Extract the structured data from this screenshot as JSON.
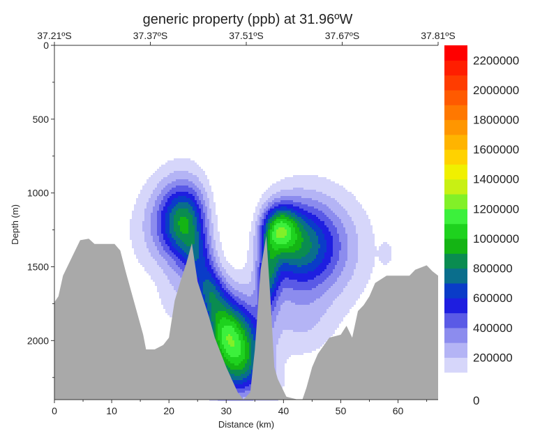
{
  "chart_data": {
    "type": "heatmap",
    "title": "generic property (ppb) at 31.96ºW",
    "xlabel": "Distance (km)",
    "ylabel": "Depth (m)",
    "xlim": [
      0,
      67
    ],
    "ylim": [
      2400,
      0
    ],
    "x_ticks": [
      "0",
      "10",
      "20",
      "30",
      "40",
      "50",
      "60"
    ],
    "y_ticks": [
      "0",
      "500",
      "1000",
      "1500",
      "2000"
    ],
    "top_axis_labels": [
      "37.21ºS",
      "37.37ºS",
      "37.51ºS",
      "37.67ºS",
      "37.81ºS"
    ],
    "colorbar": {
      "min": 0,
      "max": 2300000,
      "labels": [
        "0",
        "200000",
        "400000",
        "600000",
        "800000",
        "1000000",
        "1200000",
        "1400000",
        "1600000",
        "1800000",
        "2000000",
        "2200000"
      ],
      "levels": [
        {
          "from": 0,
          "to": 100000,
          "color": "#ffffff"
        },
        {
          "from": 100000,
          "to": 200000,
          "color": "#d6d6fa"
        },
        {
          "from": 200000,
          "to": 300000,
          "color": "#b4b4f5"
        },
        {
          "from": 300000,
          "to": 400000,
          "color": "#8c8cee"
        },
        {
          "from": 400000,
          "to": 500000,
          "color": "#5a5ae6"
        },
        {
          "from": 500000,
          "to": 600000,
          "color": "#1e1ee0"
        },
        {
          "from": 600000,
          "to": 700000,
          "color": "#0a3cc8"
        },
        {
          "from": 700000,
          "to": 800000,
          "color": "#0a6e8c"
        },
        {
          "from": 800000,
          "to": 900000,
          "color": "#0a8c50"
        },
        {
          "from": 900000,
          "to": 1000000,
          "color": "#14b414"
        },
        {
          "from": 1000000,
          "to": 1100000,
          "color": "#1ed21e"
        },
        {
          "from": 1100000,
          "to": 1200000,
          "color": "#3cf03c"
        },
        {
          "from": 1200000,
          "to": 1300000,
          "color": "#82f028"
        },
        {
          "from": 1300000,
          "to": 1400000,
          "color": "#c8f014"
        },
        {
          "from": 1400000,
          "to": 1500000,
          "color": "#f0f000"
        },
        {
          "from": 1500000,
          "to": 1600000,
          "color": "#ffd200"
        },
        {
          "from": 1600000,
          "to": 1700000,
          "color": "#ffb400"
        },
        {
          "from": 1700000,
          "to": 1800000,
          "color": "#ff9600"
        },
        {
          "from": 1800000,
          "to": 1900000,
          "color": "#ff7800"
        },
        {
          "from": 1900000,
          "to": 2000000,
          "color": "#ff5a00"
        },
        {
          "from": 2000000,
          "to": 2100000,
          "color": "#ff3c00"
        },
        {
          "from": 2100000,
          "to": 2200000,
          "color": "#ff1e00"
        },
        {
          "from": 2200000,
          "to": 2300000,
          "color": "#ff0000"
        }
      ]
    },
    "field": {
      "description_units": "x in km, y in m depth, amp in ppb",
      "blobs": [
        {
          "x": 23.2,
          "y": 1200,
          "sx": 3.2,
          "sy": 170,
          "amp": 700000
        },
        {
          "x": 23.0,
          "y": 1090,
          "sx": 4.5,
          "sy": 230,
          "amp": 200000
        },
        {
          "x": 25.5,
          "y": 1440,
          "sx": 2.2,
          "sy": 120,
          "amp": 450000
        },
        {
          "x": 27.3,
          "y": 1650,
          "sx": 2.0,
          "sy": 120,
          "amp": 700000
        },
        {
          "x": 29.5,
          "y": 1900,
          "sx": 2.4,
          "sy": 180,
          "amp": 900000
        },
        {
          "x": 32.5,
          "y": 2100,
          "sx": 3.0,
          "sy": 260,
          "amp": 1050000
        },
        {
          "x": 37.2,
          "y": 1550,
          "sx": 1.3,
          "sy": 180,
          "amp": 650000
        },
        {
          "x": 38.8,
          "y": 1240,
          "sx": 2.3,
          "sy": 110,
          "amp": 800000
        },
        {
          "x": 42.5,
          "y": 1350,
          "sx": 5.0,
          "sy": 200,
          "amp": 600000
        },
        {
          "x": 45.0,
          "y": 1400,
          "sx": 7.5,
          "sy": 320,
          "amp": 250000
        },
        {
          "x": 19.0,
          "y": 1290,
          "sx": 5.0,
          "sy": 230,
          "amp": 160000
        },
        {
          "x": 43.0,
          "y": 1900,
          "sx": 4.0,
          "sy": 170,
          "amp": 140000
        },
        {
          "x": 37.5,
          "y": 2320,
          "sx": 2.0,
          "sy": 120,
          "amp": 160000
        },
        {
          "x": 21.0,
          "y": 1720,
          "sx": 2.2,
          "sy": 150,
          "amp": 130000
        },
        {
          "x": 58.0,
          "y": 1410,
          "sx": 0.7,
          "sy": 50,
          "amp": 130000
        }
      ],
      "cutouts": [
        {
          "x": 31.5,
          "y": 1000,
          "sx": 4.0,
          "sy": 550,
          "factor": 0.0
        },
        {
          "x": 34.5,
          "y": 2620,
          "sx": 4.0,
          "sy": 200,
          "factor": 0.0
        }
      ]
    },
    "bathymetry": {
      "color": "#a9a9a9",
      "points": [
        [
          0,
          1740
        ],
        [
          0.7,
          1700
        ],
        [
          1.5,
          1560
        ],
        [
          3,
          1440
        ],
        [
          4.5,
          1320
        ],
        [
          6,
          1310
        ],
        [
          7,
          1345
        ],
        [
          10.5,
          1345
        ],
        [
          11.5,
          1390
        ],
        [
          12.5,
          1540
        ],
        [
          14,
          1750
        ],
        [
          15.5,
          1960
        ],
        [
          16,
          2060
        ],
        [
          17.5,
          2060
        ],
        [
          18,
          2050
        ],
        [
          19,
          2030
        ],
        [
          20,
          1980
        ],
        [
          21,
          1730
        ],
        [
          22,
          1600
        ],
        [
          23,
          1480
        ],
        [
          24,
          1340
        ],
        [
          25,
          1600
        ],
        [
          26,
          1720
        ],
        [
          27,
          1840
        ],
        [
          28,
          1980
        ],
        [
          30,
          2180
        ],
        [
          32,
          2350
        ],
        [
          33,
          2400
        ],
        [
          34.2,
          2350
        ],
        [
          35,
          2060
        ],
        [
          36,
          1520
        ],
        [
          37,
          1290
        ],
        [
          37.7,
          1700
        ],
        [
          38.4,
          2180
        ],
        [
          39,
          2260
        ],
        [
          40.5,
          2380
        ],
        [
          42.5,
          2450
        ],
        [
          43.3,
          2440
        ],
        [
          44,
          2320
        ],
        [
          45,
          2180
        ],
        [
          46,
          2090
        ],
        [
          48,
          1980
        ],
        [
          50,
          1960
        ],
        [
          51,
          1900
        ],
        [
          52,
          1980
        ],
        [
          53,
          1800
        ],
        [
          54,
          1760
        ],
        [
          55,
          1700
        ],
        [
          56,
          1610
        ],
        [
          58,
          1560
        ],
        [
          62,
          1560
        ],
        [
          63,
          1520
        ],
        [
          65,
          1490
        ],
        [
          66,
          1530
        ],
        [
          67,
          1560
        ]
      ]
    }
  }
}
